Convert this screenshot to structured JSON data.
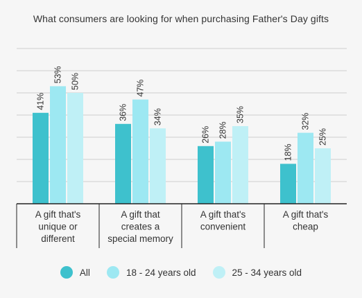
{
  "chart_data": {
    "type": "bar",
    "title": "What consumers are looking for when purchasing Father's Day gifts",
    "categories": [
      [
        "A gift that's",
        "unique or",
        "different"
      ],
      [
        "A gift that",
        "creates a",
        "special memory"
      ],
      [
        "A gift that's",
        "convenient"
      ],
      [
        "A gift that's",
        "cheap"
      ]
    ],
    "series": [
      {
        "name": "All",
        "color": "#3ec1cd",
        "values": [
          41,
          36,
          26,
          18
        ],
        "labels": [
          "41%",
          "36%",
          "26%",
          "18%"
        ]
      },
      {
        "name": "18 - 24 years old",
        "color": "#9de8f2",
        "values": [
          53,
          47,
          28,
          32
        ],
        "labels": [
          "53%",
          "47%",
          "28%",
          "32%"
        ]
      },
      {
        "name": "25 - 34 years old",
        "color": "#bff0f6",
        "values": [
          50,
          34,
          35,
          25
        ],
        "labels": [
          "50%",
          "34%",
          "35%",
          "25%"
        ]
      }
    ],
    "ylim": [
      0,
      70
    ],
    "grid": true,
    "legend_position": "bottom"
  }
}
